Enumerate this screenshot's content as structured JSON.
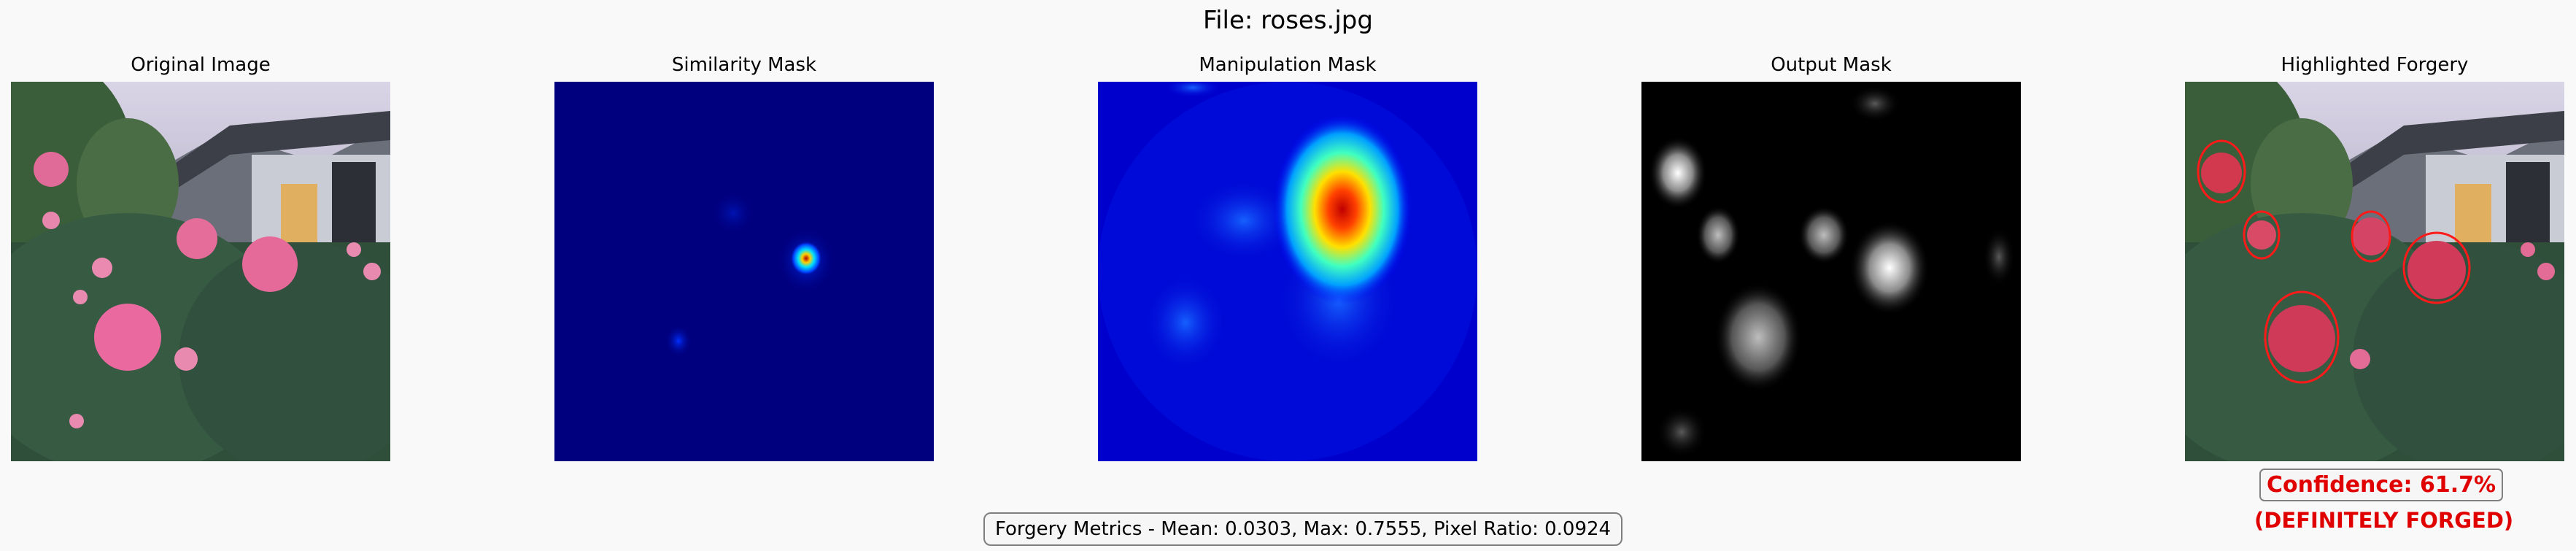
{
  "suptitle": "File: roses.jpg",
  "panels": [
    {
      "title": "Original Image"
    },
    {
      "title": "Similarity Mask"
    },
    {
      "title": "Manipulation Mask"
    },
    {
      "title": "Output Mask"
    },
    {
      "title": "Highlighted Forgery"
    }
  ],
  "metrics_text": "Forgery Metrics - Mean: 0.0303, Max: 0.7555, Pixel Ratio: 0.0924",
  "confidence_text": "Confidence: 61.7%",
  "verdict_text": "(DEFINITELY FORGED)",
  "colors": {
    "background": "#f9f9f9",
    "verdict_red": "#e00000",
    "mask_background": "#00007f"
  }
}
